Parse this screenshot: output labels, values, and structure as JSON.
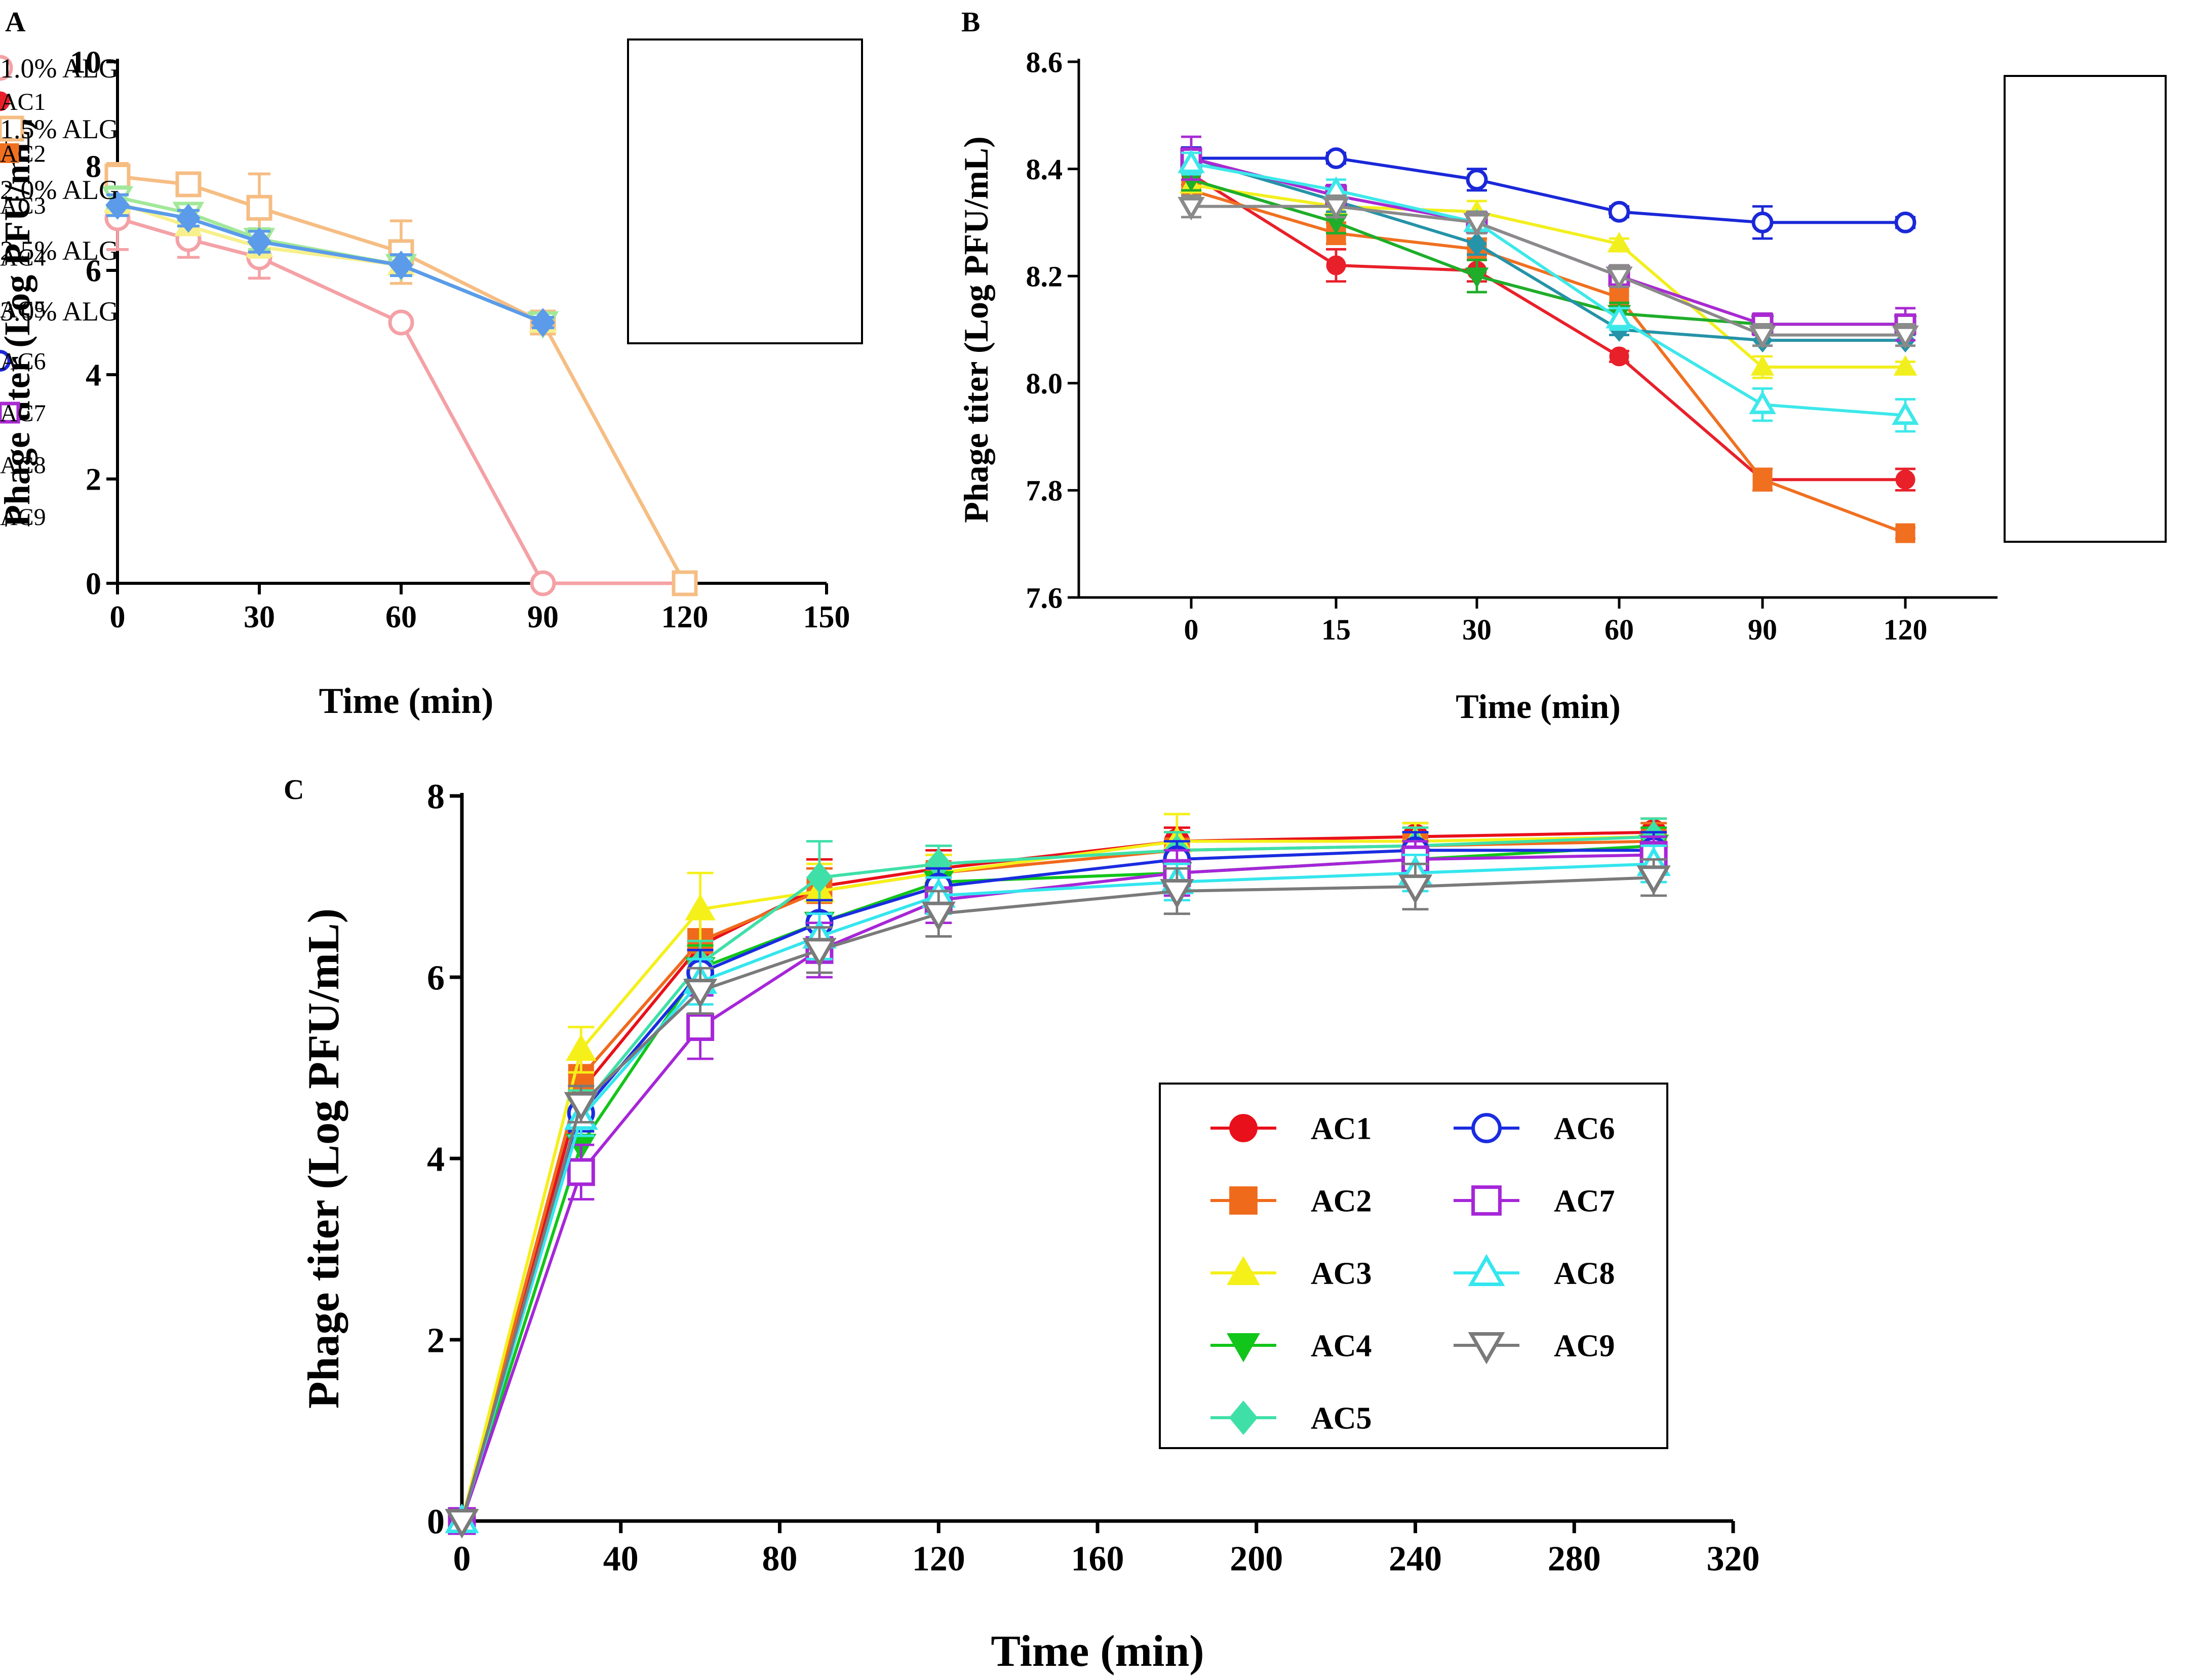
{
  "chart_data": [
    {
      "panel": "A",
      "type": "line",
      "xlabel": "Time (min)",
      "ylabel": "Phage titer (Log PFU/mL)",
      "xlim": [
        0,
        150
      ],
      "ylim": [
        0,
        10
      ],
      "xticks": [
        "0",
        "30",
        "60",
        "90",
        "120",
        "150"
      ],
      "yticks": [
        "0",
        "2",
        "4",
        "6",
        "8",
        "10"
      ],
      "legend_position": "top-right",
      "series": [
        {
          "name": "1.0% ALG",
          "color": "#f4a1a6",
          "marker": "circle-open",
          "x": [
            0,
            15,
            30,
            60,
            90,
            120
          ],
          "y": [
            7.0,
            6.6,
            6.25,
            5.0,
            0,
            0
          ],
          "err": [
            0.6,
            0.35,
            0.4,
            0.1,
            0,
            0
          ]
        },
        {
          "name": "1.5% ALG",
          "color": "#f6bd83",
          "marker": "square-open",
          "x": [
            0,
            15,
            30,
            60,
            90,
            120
          ],
          "y": [
            7.8,
            7.65,
            7.2,
            6.35,
            5.0,
            0
          ],
          "err": [
            0.25,
            0.15,
            0.65,
            0.6,
            0.1,
            0
          ]
        },
        {
          "name": "2.0% ALG",
          "color": "#f7f08c",
          "marker": "triangle-up",
          "x": [
            0,
            15,
            30,
            60,
            90
          ],
          "y": [
            7.3,
            6.85,
            6.45,
            6.1,
            5.0
          ],
          "err": [
            0.2,
            0.15,
            0.2,
            0.2,
            0.1
          ]
        },
        {
          "name": "2.5% ALG",
          "color": "#a2e89a",
          "marker": "triangle-down-open",
          "x": [
            0,
            15,
            30,
            60,
            90
          ],
          "y": [
            7.4,
            7.1,
            6.6,
            6.1,
            5.0
          ],
          "err": [
            0.2,
            0.15,
            0.2,
            0.2,
            0.1
          ]
        },
        {
          "name": "3.0% ALG",
          "color": "#5b9bea",
          "marker": "diamond",
          "x": [
            0,
            15,
            30,
            60,
            90
          ],
          "y": [
            7.25,
            7.0,
            6.55,
            6.1,
            5.0
          ],
          "err": [
            0.2,
            0.15,
            0.2,
            0.2,
            0.1
          ]
        }
      ]
    },
    {
      "panel": "B",
      "type": "line",
      "xlabel": "Time (min)",
      "ylabel": "Phage titer (Log PFU/mL)",
      "categories": [
        "0",
        "15",
        "30",
        "60",
        "90",
        "120"
      ],
      "ylim": [
        7.6,
        8.6
      ],
      "yticks": [
        "7.6",
        "7.8",
        "8.0",
        "8.2",
        "8.4",
        "8.6"
      ],
      "legend_position": "right",
      "series": [
        {
          "name": "AC1",
          "color": "#e8202a",
          "marker": "circle",
          "values": [
            8.39,
            8.22,
            8.21,
            8.05,
            7.82,
            7.82
          ],
          "err": [
            0.02,
            0.03,
            0.02,
            0.01,
            0.02,
            0.02
          ]
        },
        {
          "name": "AC2",
          "color": "#f07020",
          "marker": "square",
          "values": [
            8.36,
            8.28,
            8.25,
            8.16,
            7.82,
            7.72
          ],
          "err": [
            0.02,
            0.02,
            0.02,
            0.02,
            0.02,
            0.01
          ]
        },
        {
          "name": "AC3",
          "color": "#f2ef1e",
          "marker": "triangle-up",
          "values": [
            8.37,
            8.33,
            8.32,
            8.26,
            8.03,
            8.03
          ],
          "err": [
            0.02,
            0.02,
            0.02,
            0.01,
            0.02,
            0.01
          ]
        },
        {
          "name": "AC4",
          "color": "#1fad2a",
          "marker": "triangle-down",
          "values": [
            8.38,
            8.3,
            8.2,
            8.13,
            8.11,
            8.11
          ],
          "err": [
            0.02,
            0.02,
            0.03,
            0.02,
            0.01,
            0.01
          ]
        },
        {
          "name": "AC5",
          "color": "#2593a8",
          "marker": "diamond",
          "values": [
            8.42,
            8.34,
            8.26,
            8.1,
            8.08,
            8.08
          ],
          "err": [
            0.02,
            0.02,
            0.02,
            0.01,
            0.01,
            0.01
          ]
        },
        {
          "name": "AC6",
          "color": "#1a28d8",
          "marker": "circle-open",
          "values": [
            8.42,
            8.42,
            8.38,
            8.32,
            8.3,
            8.3
          ],
          "err": [
            0.02,
            0.01,
            0.02,
            0.01,
            0.03,
            0.01
          ]
        },
        {
          "name": "AC7",
          "color": "#a92ad1",
          "marker": "square-open",
          "values": [
            8.42,
            8.35,
            8.3,
            8.2,
            8.11,
            8.11
          ],
          "err": [
            0.04,
            0.02,
            0.02,
            0.02,
            0.02,
            0.03
          ]
        },
        {
          "name": "AC8",
          "color": "#3de8ea",
          "marker": "triangle-up-open",
          "values": [
            8.41,
            8.36,
            8.3,
            8.12,
            7.96,
            7.94
          ],
          "err": [
            0.02,
            0.02,
            0.02,
            0.02,
            0.03,
            0.03
          ]
        },
        {
          "name": "AC9",
          "color": "#8a8a8a",
          "marker": "triangle-down-open",
          "values": [
            8.33,
            8.33,
            8.3,
            8.2,
            8.09,
            8.09
          ],
          "err": [
            0.02,
            0.02,
            0.02,
            0.02,
            0.02,
            0.02
          ]
        }
      ]
    },
    {
      "panel": "C",
      "type": "line",
      "xlabel": "Time (min)",
      "ylabel": "Phage titer (Log PFU/mL)",
      "xlim": [
        0,
        320
      ],
      "ylim": [
        0,
        8
      ],
      "xticks": [
        "0",
        "40",
        "80",
        "120",
        "160",
        "200",
        "240",
        "280",
        "320"
      ],
      "yticks": [
        "0",
        "2",
        "4",
        "6",
        "8"
      ],
      "legend_position": "center-right",
      "series": [
        {
          "name": "AC1",
          "color": "#e8101a",
          "marker": "circle",
          "x": [
            0,
            30,
            60,
            90,
            120,
            180,
            240,
            300
          ],
          "y": [
            0,
            4.75,
            6.35,
            7.0,
            7.2,
            7.5,
            7.55,
            7.6
          ],
          "err": [
            0,
            0.2,
            0.3,
            0.3,
            0.2,
            0.15,
            0.15,
            0.15
          ]
        },
        {
          "name": "AC2",
          "color": "#f06a1c",
          "marker": "square",
          "x": [
            0,
            30,
            60,
            90,
            120,
            180,
            240,
            300
          ],
          "y": [
            0,
            4.9,
            6.4,
            6.95,
            7.15,
            7.4,
            7.45,
            7.5
          ],
          "err": [
            0,
            0.2,
            0.25,
            0.25,
            0.2,
            0.2,
            0.2,
            0.2
          ]
        },
        {
          "name": "AC3",
          "color": "#f5f019",
          "marker": "triangle-up",
          "x": [
            0,
            30,
            60,
            90,
            120,
            180,
            240,
            300
          ],
          "y": [
            0,
            5.2,
            6.75,
            6.95,
            7.15,
            7.5,
            7.5,
            7.55
          ],
          "err": [
            0,
            0.25,
            0.4,
            0.3,
            0.2,
            0.3,
            0.2,
            0.2
          ]
        },
        {
          "name": "AC4",
          "color": "#12c51a",
          "marker": "triangle-down",
          "x": [
            0,
            30,
            60,
            90,
            120,
            180,
            240,
            300
          ],
          "y": [
            0,
            4.15,
            6.1,
            6.6,
            7.05,
            7.15,
            7.3,
            7.45
          ],
          "err": [
            0,
            0.2,
            0.25,
            0.25,
            0.2,
            0.2,
            0.2,
            0.2
          ]
        },
        {
          "name": "AC5",
          "color": "#3fe0a8",
          "marker": "diamond",
          "x": [
            0,
            30,
            60,
            90,
            120,
            180,
            240,
            300
          ],
          "y": [
            0,
            4.55,
            6.15,
            7.1,
            7.25,
            7.4,
            7.45,
            7.55
          ],
          "err": [
            0,
            0.2,
            0.25,
            0.4,
            0.2,
            0.2,
            0.2,
            0.2
          ]
        },
        {
          "name": "AC6",
          "color": "#1a2ce0",
          "marker": "circle-open",
          "x": [
            0,
            30,
            60,
            90,
            120,
            180,
            240,
            300
          ],
          "y": [
            0,
            4.5,
            6.05,
            6.6,
            7.0,
            7.3,
            7.4,
            7.4
          ],
          "err": [
            0,
            0.2,
            0.25,
            0.25,
            0.2,
            0.2,
            0.2,
            0.2
          ]
        },
        {
          "name": "AC7",
          "color": "#a626d8",
          "marker": "square-open",
          "x": [
            0,
            30,
            60,
            90,
            120,
            180,
            240,
            300
          ],
          "y": [
            0,
            3.85,
            5.45,
            6.3,
            6.85,
            7.15,
            7.3,
            7.35
          ],
          "err": [
            0,
            0.3,
            0.35,
            0.3,
            0.25,
            0.25,
            0.2,
            0.2
          ]
        },
        {
          "name": "AC8",
          "color": "#34e6ee",
          "marker": "triangle-up-open",
          "x": [
            0,
            30,
            60,
            90,
            120,
            180,
            240,
            300
          ],
          "y": [
            0,
            4.45,
            5.95,
            6.45,
            6.9,
            7.05,
            7.15,
            7.25
          ],
          "err": [
            0,
            0.2,
            0.25,
            0.25,
            0.2,
            0.2,
            0.2,
            0.2
          ]
        },
        {
          "name": "AC9",
          "color": "#7a7a7a",
          "marker": "triangle-down-open",
          "x": [
            0,
            30,
            60,
            90,
            120,
            180,
            240,
            300
          ],
          "y": [
            0,
            4.6,
            5.85,
            6.3,
            6.7,
            6.95,
            7.0,
            7.1
          ],
          "err": [
            0,
            0.2,
            0.25,
            0.25,
            0.25,
            0.25,
            0.25,
            0.2
          ]
        }
      ]
    }
  ]
}
